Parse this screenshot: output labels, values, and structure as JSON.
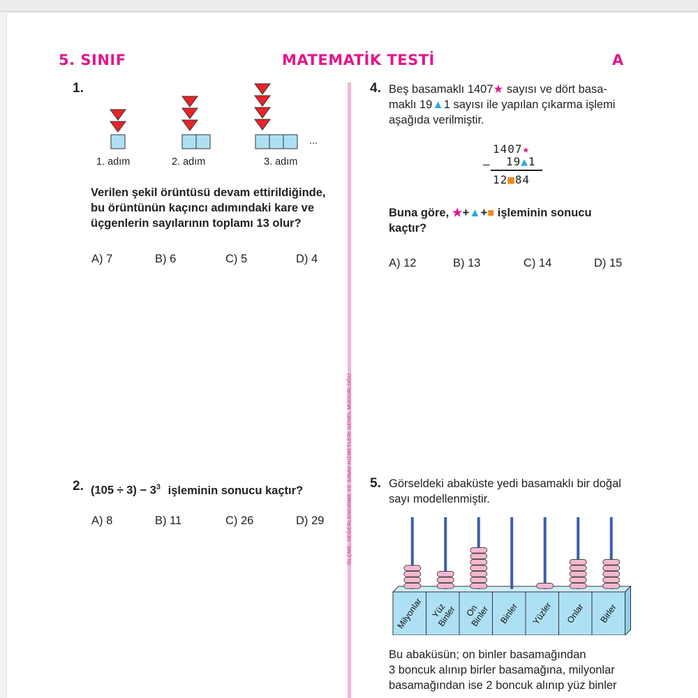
{
  "header": {
    "grade": "5. SINIF",
    "title": "MATEMATİK TESTİ",
    "booklet": "A"
  },
  "side_text": "ÖLÇME, DEĞERLENDİRME VE SINAV HİZMETLERİ GENEL MÜDÜRLÜĞÜ",
  "q1": {
    "number": "1.",
    "steps": [
      "1. adım",
      "2. adım",
      "3. adım"
    ],
    "ellipsis": "...",
    "text_lines": [
      "Verilen şekil örüntüsü devam ettirildiğinde,",
      "bu örüntünün kaçıncı adımındaki kare ve",
      "üçgenlerin sayılarının toplamı 13 olur?"
    ],
    "options": [
      "A) 7",
      "B) 6",
      "C) 5",
      "D) 4"
    ]
  },
  "q2": {
    "number": "2.",
    "expr_left": "(105 ÷ 3) − 3",
    "expr_exp": "3",
    "expr_right": "işleminin sonucu kaçtır?",
    "options": [
      "A) 8",
      "B) 11",
      "C) 26",
      "D) 29"
    ]
  },
  "q4": {
    "number": "4.",
    "line1_a": "Beş basamaklı 1407",
    "line1_b": " sayısı ve dört basa-",
    "line2_a": "maklı 19",
    "line2_b": "1 sayısı ile yapılan çıkarma işlemi",
    "line3": "aşağıda verilmiştir.",
    "sub_row1": "1407",
    "sub_row2_a": "19",
    "sub_row2_b": "1",
    "minus": "–",
    "res_a": "12",
    "res_b": "84",
    "star_glyph": "★",
    "tri_glyph": "▲",
    "sq_glyph": "■",
    "plus": "+",
    "question_a": "Buna göre,",
    "question_b": "işleminin sonucu",
    "question_c": "kaçtır?",
    "options": [
      "A) 12",
      "B) 13",
      "C) 14",
      "D) 15"
    ]
  },
  "q5": {
    "number": "5.",
    "line1": "Görseldeki abaküste yedi basamaklı bir doğal",
    "line2": "sayı modellenmiştir.",
    "abacus_labels": [
      [
        "Milyonlar"
      ],
      [
        "Yüz",
        "Binler"
      ],
      [
        "On",
        "Binler"
      ],
      [
        "Binler"
      ],
      [
        "Yüzler"
      ],
      [
        "Onlar"
      ],
      [
        "Birler"
      ]
    ],
    "bead_counts": [
      4,
      3,
      7,
      0,
      1,
      5,
      5
    ],
    "para_lines": [
      "Bu abaküsün; on binler basamağından",
      "3 boncuk alınıp birler basamağına, milyonlar",
      "basamağından ise 2 boncuk alınıp yüz binler"
    ]
  },
  "colors": {
    "accent": "#e0188c",
    "triangle_red": "#e8232a",
    "square_blue": "#aee0f5",
    "bead_pink": "#f5b8d0",
    "rod_blue": "#3b5fae",
    "divider": "#f3b6d4"
  }
}
